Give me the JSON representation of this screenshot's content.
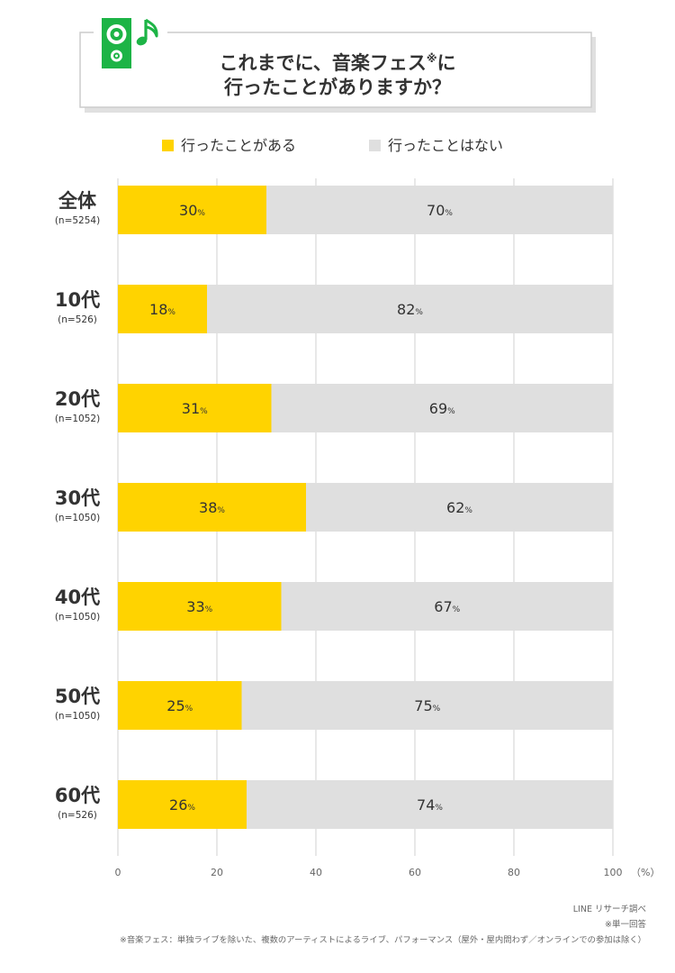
{
  "title": {
    "line1": "これまでに、音楽フェス",
    "mark": "※",
    "line1_suffix": "に",
    "line2": "行ったことがありますか？"
  },
  "colors": {
    "yes": "#FFD300",
    "no": "#DFDFDF",
    "accent": "#1DB446",
    "grid": "#D0D0D0",
    "text": "#333333",
    "subtext": "#666666"
  },
  "icons": {
    "speaker": "speaker-icon",
    "note": "music-note-icon"
  },
  "chart_data": {
    "type": "bar",
    "orientation": "horizontal",
    "stacked": true,
    "categories": [
      "全体",
      "10代",
      "20代",
      "30代",
      "40代",
      "50代",
      "60代"
    ],
    "sample_sizes": [
      "(n=5254)",
      "(n=526)",
      "(n=1052)",
      "(n=1050)",
      "(n=1050)",
      "(n=1050)",
      "(n=526)"
    ],
    "series": [
      {
        "name": "行ったことがある",
        "values": [
          30,
          18,
          31,
          38,
          33,
          25,
          26
        ]
      },
      {
        "name": "行ったことはない",
        "values": [
          70,
          82,
          69,
          62,
          67,
          75,
          74
        ]
      }
    ],
    "value_suffix": "%",
    "x_ticks": [
      "0",
      "20",
      "40",
      "60",
      "80",
      "100"
    ],
    "x_unit": "（%）",
    "xlim": [
      0,
      100
    ],
    "grid": true,
    "legend_position": "top"
  },
  "footnotes": {
    "source": "LINE リサーチ調べ",
    "single_answer": "※単一回答",
    "definition": "※音楽フェス：単独ライブを除いた、複数のアーティストによるライブ、パフォーマンス（屋外・屋内問わず／オンラインでの参加は除く）"
  }
}
